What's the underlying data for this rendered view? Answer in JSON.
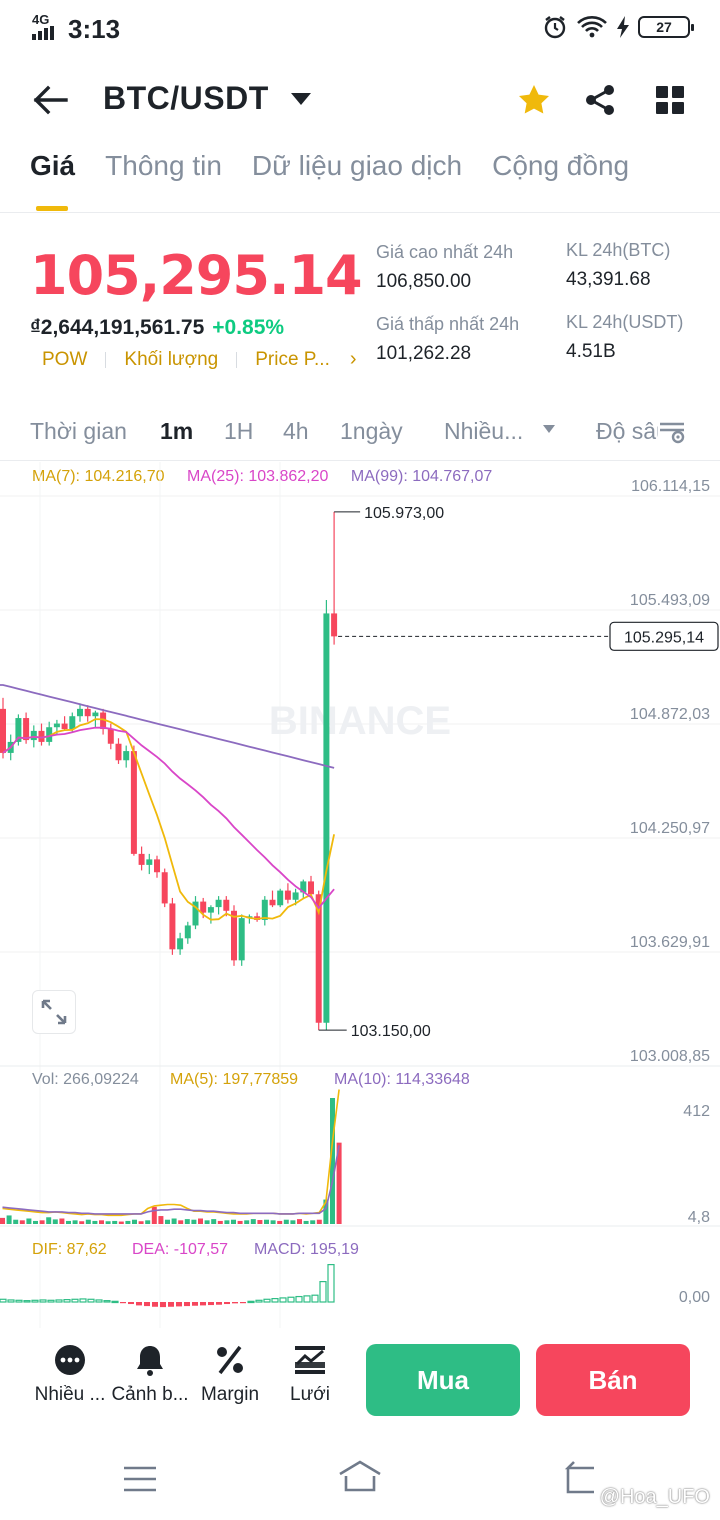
{
  "status_bar": {
    "network": "4G",
    "time": "3:13",
    "battery": "27"
  },
  "header": {
    "pair": "BTC/USDT"
  },
  "tabs": [
    {
      "label": "Giá"
    },
    {
      "label": "Thông tin"
    },
    {
      "label": "Dữ liệu giao dịch"
    },
    {
      "label": "Cộng đồng"
    }
  ],
  "price": {
    "last": "105,295.14",
    "fiat": "₫2,644,191,561.75",
    "change": "+0.85%",
    "tags": [
      "POW",
      "Khối lượng",
      "Price P..."
    ],
    "more": "›"
  },
  "stats": {
    "high_label": "Giá cao nhất 24h",
    "high": "106,850.00",
    "low_label": "Giá thấp nhất 24h",
    "low": "101,262.28",
    "vol_btc_label": "KL 24h(BTC)",
    "vol_btc": "43,391.68",
    "vol_usdt_label": "KL 24h(USDT)",
    "vol_usdt": "4.51B"
  },
  "intervals": {
    "time_label": "Thời gian",
    "options": [
      "1m",
      "1H",
      "4h",
      "1ngày"
    ],
    "selected": "1m",
    "more": "Nhiều...",
    "depth": "Độ sâu"
  },
  "ma_legend": {
    "ma7": "MA(7): 104.216,70",
    "ma25": "MA(25): 103.862,20",
    "ma99": "MA(99): 104.767,07"
  },
  "chart_data": {
    "type": "candlestick",
    "y_ticks": [
      "106.114,15",
      "105.493,09",
      "104.872,03",
      "104.250,97",
      "103.629,91",
      "103.008,85"
    ],
    "ylim": [
      103008.85,
      106114.15
    ],
    "high_marker": "105.973,00",
    "low_marker": "103.150,00",
    "current_price_label": "105.295,14",
    "watermark": "BINANCE",
    "candles": [
      {
        "o": 104900,
        "h": 104960,
        "l": 104630,
        "c": 104660
      },
      {
        "o": 104660,
        "h": 104760,
        "l": 104620,
        "c": 104720
      },
      {
        "o": 104720,
        "h": 104870,
        "l": 104700,
        "c": 104850
      },
      {
        "o": 104850,
        "h": 104880,
        "l": 104710,
        "c": 104730
      },
      {
        "o": 104730,
        "h": 104810,
        "l": 104690,
        "c": 104780
      },
      {
        "o": 104780,
        "h": 104820,
        "l": 104700,
        "c": 104720
      },
      {
        "o": 104720,
        "h": 104830,
        "l": 104700,
        "c": 104800
      },
      {
        "o": 104800,
        "h": 104840,
        "l": 104760,
        "c": 104820
      },
      {
        "o": 104820,
        "h": 104860,
        "l": 104780,
        "c": 104790
      },
      {
        "o": 104790,
        "h": 104880,
        "l": 104770,
        "c": 104860
      },
      {
        "o": 104860,
        "h": 104930,
        "l": 104830,
        "c": 104900
      },
      {
        "o": 104900,
        "h": 104920,
        "l": 104830,
        "c": 104860
      },
      {
        "o": 104860,
        "h": 104890,
        "l": 104800,
        "c": 104880
      },
      {
        "o": 104880,
        "h": 104900,
        "l": 104760,
        "c": 104790
      },
      {
        "o": 104790,
        "h": 104820,
        "l": 104680,
        "c": 104710
      },
      {
        "o": 104710,
        "h": 104740,
        "l": 104600,
        "c": 104620
      },
      {
        "o": 104620,
        "h": 104700,
        "l": 104580,
        "c": 104670
      },
      {
        "o": 104670,
        "h": 104700,
        "l": 104100,
        "c": 104110
      },
      {
        "o": 104110,
        "h": 104150,
        "l": 104020,
        "c": 104050
      },
      {
        "o": 104050,
        "h": 104110,
        "l": 104000,
        "c": 104080
      },
      {
        "o": 104080,
        "h": 104100,
        "l": 103980,
        "c": 104010
      },
      {
        "o": 104010,
        "h": 104030,
        "l": 103820,
        "c": 103840
      },
      {
        "o": 103840,
        "h": 103870,
        "l": 103560,
        "c": 103590
      },
      {
        "o": 103590,
        "h": 103680,
        "l": 103560,
        "c": 103650
      },
      {
        "o": 103650,
        "h": 103740,
        "l": 103620,
        "c": 103720
      },
      {
        "o": 103720,
        "h": 103880,
        "l": 103700,
        "c": 103850
      },
      {
        "o": 103850,
        "h": 103870,
        "l": 103760,
        "c": 103790
      },
      {
        "o": 103790,
        "h": 103830,
        "l": 103730,
        "c": 103820
      },
      {
        "o": 103820,
        "h": 103880,
        "l": 103780,
        "c": 103860
      },
      {
        "o": 103860,
        "h": 103880,
        "l": 103770,
        "c": 103800
      },
      {
        "o": 103800,
        "h": 103830,
        "l": 103500,
        "c": 103530
      },
      {
        "o": 103530,
        "h": 103780,
        "l": 103500,
        "c": 103760
      },
      {
        "o": 103760,
        "h": 103780,
        "l": 103730,
        "c": 103770
      },
      {
        "o": 103770,
        "h": 103790,
        "l": 103740,
        "c": 103750
      },
      {
        "o": 103750,
        "h": 103880,
        "l": 103720,
        "c": 103860
      },
      {
        "o": 103860,
        "h": 103910,
        "l": 103820,
        "c": 103830
      },
      {
        "o": 103830,
        "h": 103920,
        "l": 103820,
        "c": 103910
      },
      {
        "o": 103910,
        "h": 103950,
        "l": 103840,
        "c": 103860
      },
      {
        "o": 103860,
        "h": 103920,
        "l": 103830,
        "c": 103900
      },
      {
        "o": 103900,
        "h": 103970,
        "l": 103870,
        "c": 103960
      },
      {
        "o": 103960,
        "h": 103990,
        "l": 103880,
        "c": 103890
      },
      {
        "o": 103890,
        "h": 103910,
        "l": 103150,
        "c": 103190
      },
      {
        "o": 103190,
        "h": 105493,
        "l": 103150,
        "c": 105420
      },
      {
        "o": 105420,
        "h": 105973,
        "l": 105250,
        "c": 105295
      }
    ]
  },
  "volume": {
    "vol_label": "Vol: 266,09224",
    "ma5_label": "MA(5): 197,77859",
    "ma10_label": "MA(10): 114,33648",
    "y_ticks": [
      "412",
      "4,8"
    ],
    "bars": [
      20,
      28,
      14,
      12,
      18,
      10,
      12,
      22,
      15,
      18,
      10,
      12,
      9,
      14,
      10,
      12,
      9,
      10,
      8,
      10,
      14,
      9,
      12,
      56,
      26,
      14,
      18,
      12,
      16,
      14,
      18,
      12,
      16,
      10,
      12,
      14,
      10,
      12,
      16,
      13,
      14,
      12,
      10,
      14,
      12,
      16,
      10,
      12,
      14,
      80,
      412,
      266
    ],
    "ma5": [
      20,
      19,
      18,
      17,
      16,
      15,
      14,
      14,
      15,
      14,
      13,
      12,
      11,
      12,
      11,
      11,
      10,
      10,
      10,
      11,
      12,
      12,
      20,
      24,
      25,
      26,
      26,
      25,
      20,
      16,
      16,
      15,
      15,
      14,
      13,
      12,
      12,
      12,
      13,
      13,
      13,
      13,
      12,
      12,
      12,
      13,
      12,
      13,
      14,
      30,
      120,
      197
    ],
    "ma10": [
      22,
      21,
      20,
      19,
      18,
      17,
      16,
      15,
      15,
      15,
      14,
      14,
      13,
      13,
      12,
      12,
      12,
      12,
      12,
      12,
      12,
      12,
      15,
      17,
      18,
      18,
      19,
      19,
      18,
      17,
      17,
      16,
      16,
      15,
      14,
      14,
      13,
      13,
      13,
      13,
      13,
      13,
      12,
      12,
      12,
      13,
      13,
      13,
      13,
      20,
      60,
      114
    ]
  },
  "macd": {
    "dif_label": "DIF: 87,62",
    "dea_label": "DEA: -107,57",
    "macd_label": "MACD: 195,19",
    "zero_label": "0,00",
    "hist": [
      8,
      6,
      5,
      4,
      5,
      6,
      5,
      6,
      7,
      8,
      9,
      8,
      6,
      4,
      2,
      -2,
      -6,
      -10,
      -12,
      -14,
      -15,
      -14,
      -13,
      -12,
      -11,
      -10,
      -9,
      -8,
      -6,
      -4,
      -2,
      2,
      5,
      8,
      10,
      12,
      14,
      16,
      18,
      20,
      60,
      110
    ]
  },
  "actions": [
    {
      "label": "Nhiều ..."
    },
    {
      "label": "Cảnh b..."
    },
    {
      "label": "Margin"
    },
    {
      "label": "Lưới"
    }
  ],
  "buy_label": "Mua",
  "sell_label": "Bán",
  "watermark_user": "@Hoa_UFO",
  "colors": {
    "up": "#2ebd85",
    "down": "#f6465d",
    "ma7": "#f0b90b",
    "ma25": "#d946c8",
    "ma99": "#8c6bbf",
    "accent": "#f0b90b"
  }
}
